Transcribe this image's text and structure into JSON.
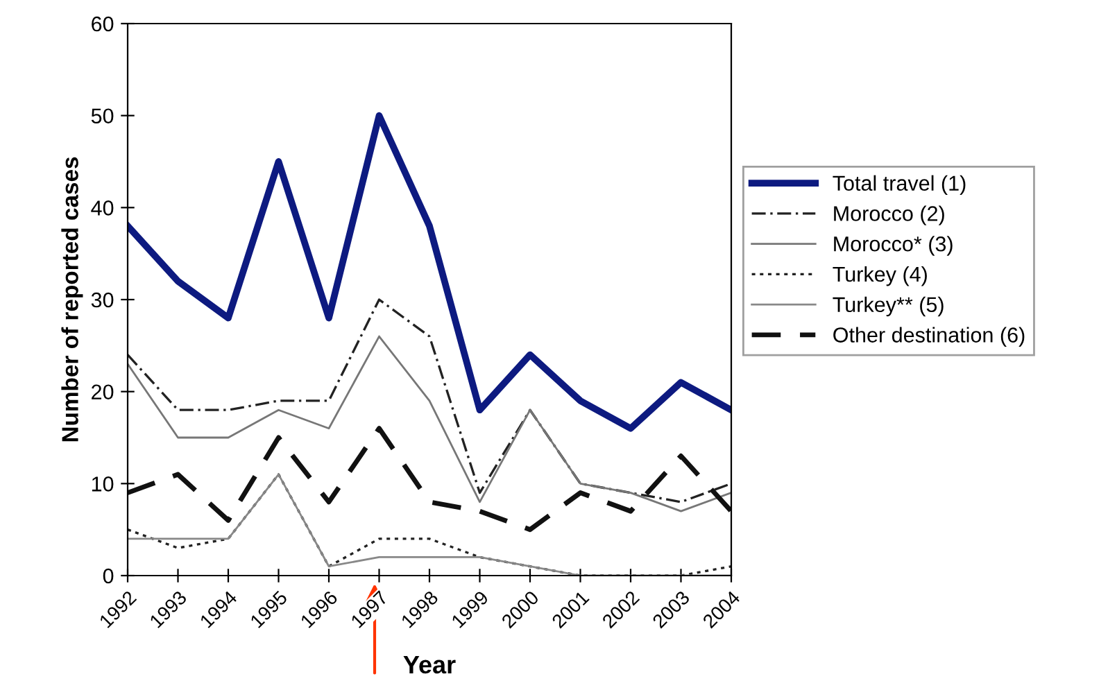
{
  "chart_data": {
    "type": "line",
    "xlabel": "Year",
    "ylabel": "Number of reported cases",
    "categories": [
      "1992",
      "1993",
      "1994",
      "1995",
      "1996",
      "1997",
      "1998",
      "1999",
      "2000",
      "2001",
      "2002",
      "2003",
      "2004"
    ],
    "ylim": [
      0,
      60
    ],
    "yticks": [
      0,
      10,
      20,
      30,
      40,
      50,
      60
    ],
    "grid": false,
    "legend": "right",
    "marker": "none",
    "series": [
      {
        "name": "Total travel (1)",
        "color": "#0d1a80",
        "line_style": "solid",
        "values": [
          38,
          32,
          28,
          45,
          28,
          50,
          38,
          18,
          24,
          19,
          16,
          21,
          18
        ]
      },
      {
        "name": "Morocco (2)",
        "color": "#222222",
        "line_style": "dashdot",
        "values": [
          24,
          18,
          18,
          19,
          19,
          30,
          26,
          9,
          18,
          10,
          9,
          8,
          10
        ]
      },
      {
        "name": "Morocco* (3)",
        "color": "#777777",
        "line_style": "solid",
        "values": [
          23,
          15,
          15,
          18,
          16,
          26,
          19,
          8,
          18,
          10,
          9,
          7,
          9
        ]
      },
      {
        "name": "Turkey (4)",
        "color": "#222222",
        "line_style": "dotted",
        "values": [
          5,
          3,
          4,
          11,
          1,
          4,
          4,
          2,
          1,
          0,
          0,
          0,
          1
        ]
      },
      {
        "name": "Turkey** (5)",
        "color": "#888888",
        "line_style": "solid",
        "values": [
          4,
          4,
          4,
          11,
          1,
          2,
          2,
          2,
          1,
          0,
          0,
          0,
          0
        ]
      },
      {
        "name": "Other destination (6)",
        "color": "#111111",
        "line_style": "dashed",
        "values": [
          9,
          11,
          6,
          15,
          8,
          16,
          8,
          7,
          5,
          9,
          7,
          13,
          7
        ]
      }
    ]
  }
}
